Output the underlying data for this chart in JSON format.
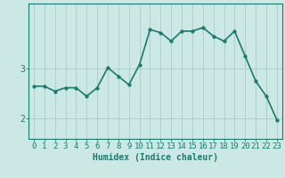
{
  "x": [
    0,
    1,
    2,
    3,
    4,
    5,
    6,
    7,
    8,
    9,
    10,
    11,
    12,
    13,
    14,
    15,
    16,
    17,
    18,
    19,
    20,
    21,
    22,
    23
  ],
  "y": [
    2.65,
    2.65,
    2.55,
    2.62,
    2.62,
    2.45,
    2.62,
    3.02,
    2.85,
    2.68,
    3.08,
    3.78,
    3.72,
    3.55,
    3.75,
    3.75,
    3.82,
    3.65,
    3.55,
    3.75,
    3.25,
    2.75,
    2.45,
    1.98
  ],
  "line_color": "#1a7a6e",
  "marker": "o",
  "marker_size": 2.5,
  "bg_color": "#cce8e4",
  "grid_color": "#aaccc8",
  "axis_color": "#1a7a6e",
  "xlabel": "Humidex (Indice chaleur)",
  "yticks": [
    2,
    3
  ],
  "ylim": [
    1.6,
    4.3
  ],
  "xlim": [
    -0.5,
    23.5
  ],
  "xlabel_fontsize": 7,
  "tick_fontsize": 6.5,
  "line_width": 1.2
}
